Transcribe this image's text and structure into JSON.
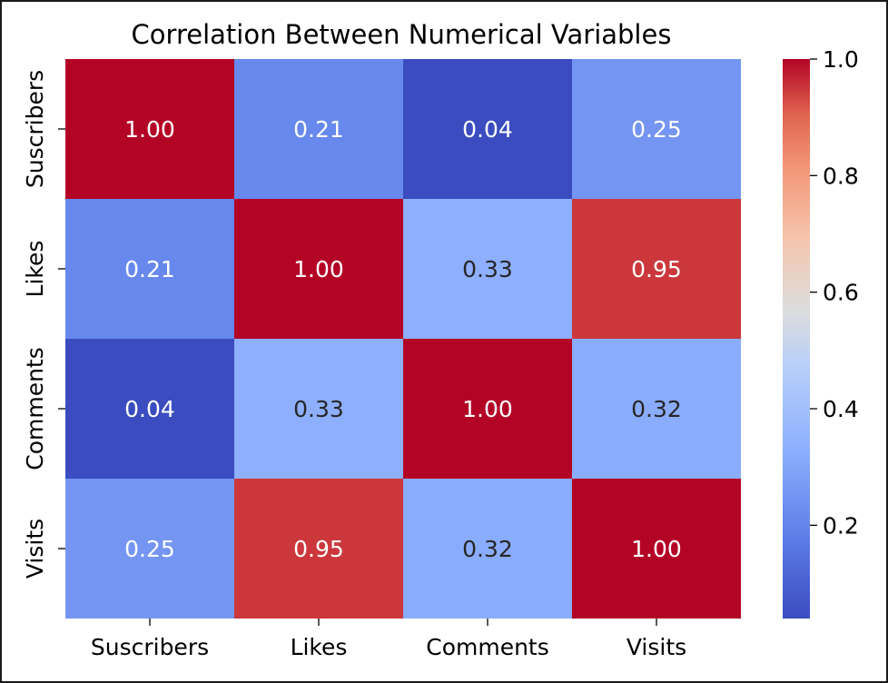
{
  "chart_data": {
    "type": "heatmap",
    "title": "Correlation Between Numerical Variables",
    "row_labels": [
      "Suscribers",
      "Likes",
      "Comments",
      "Visits"
    ],
    "col_labels": [
      "Suscribers",
      "Likes",
      "Comments",
      "Visits"
    ],
    "values": [
      [
        1.0,
        0.21,
        0.04,
        0.25
      ],
      [
        0.21,
        1.0,
        0.33,
        0.95
      ],
      [
        0.04,
        0.33,
        1.0,
        0.32
      ],
      [
        0.25,
        0.95,
        0.32,
        1.0
      ]
    ],
    "value_format": "0.00",
    "colormap": "coolwarm",
    "colorbar": {
      "range": [
        0.04,
        1.0
      ],
      "ticks": [
        0.2,
        0.4,
        0.6,
        0.8,
        1.0
      ],
      "tick_labels": [
        "0.2",
        "0.4",
        "0.6",
        "0.8",
        "1.0"
      ],
      "placement": "right"
    },
    "colors": {
      "cell_high": "#b40426",
      "cell_low": "#3b4cc0",
      "text_light": "#ffffff",
      "text_dark": "#262626"
    }
  }
}
